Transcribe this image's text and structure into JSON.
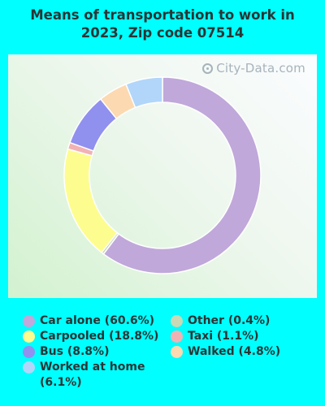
{
  "title": "Means of transportation to work in 2023, Zip code 07514",
  "watermark": "City-Data.com",
  "chart_data": {
    "type": "pie",
    "style": "donut",
    "title": "Means of transportation to work in 2023, Zip code 07514",
    "slices": [
      {
        "label": "Car alone",
        "value": 60.6,
        "legend": "Car alone (60.6%)",
        "color": "#c0a8da"
      },
      {
        "label": "Other",
        "value": 0.4,
        "legend": "Other (0.4%)",
        "color": "#c9d8b5"
      },
      {
        "label": "Carpooled",
        "value": 18.8,
        "legend": "Carpooled (18.8%)",
        "color": "#fdfd8f"
      },
      {
        "label": "Taxi",
        "value": 1.1,
        "legend": "Taxi (1.1%)",
        "color": "#f2b2b4"
      },
      {
        "label": "Bus",
        "value": 8.8,
        "legend": "Bus (8.8%)",
        "color": "#9090ef"
      },
      {
        "label": "Walked",
        "value": 4.8,
        "legend": "Walked (4.8%)",
        "color": "#fcd9b0"
      },
      {
        "label": "Worked at home",
        "value": 6.1,
        "legend": "Worked at home (6.1%)",
        "color": "#b1d6fa"
      }
    ],
    "legend_placement": "bottom",
    "start_angle": "top",
    "direction": "clockwise"
  },
  "legend": {
    "left": [
      {
        "text": "Car alone (60.6%)",
        "color": "#c0a8da"
      },
      {
        "text": "Carpooled (18.8%)",
        "color": "#fdfd8f"
      },
      {
        "text": "Bus (8.8%)",
        "color": "#9090ef"
      },
      {
        "text": "Worked at home (6.1%)",
        "color": "#b1d6fa"
      }
    ],
    "right": [
      {
        "text": "Other (0.4%)",
        "color": "#c9d8b5"
      },
      {
        "text": "Taxi (1.1%)",
        "color": "#f2b2b4"
      },
      {
        "text": "Walked (4.8%)",
        "color": "#fcd9b0"
      }
    ]
  }
}
